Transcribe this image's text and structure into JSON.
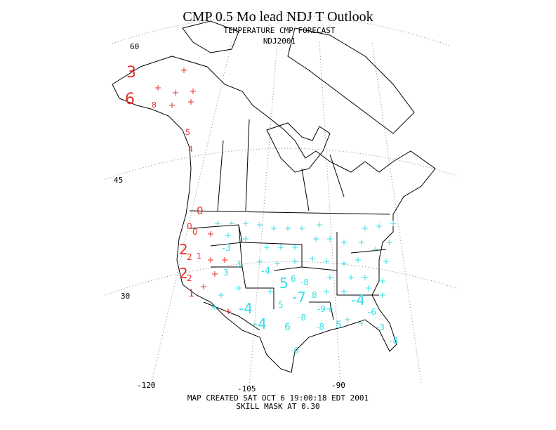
{
  "title": "CMP 0.5 Mo lead NDJ T Outlook",
  "map": {
    "heading": "TEMPERATURE CMP FORECAST",
    "period": "NDJ2001",
    "lat_labels": [
      "60",
      "45",
      "30"
    ],
    "lon_labels": [
      "-120",
      "-105",
      "-90"
    ],
    "footer": [
      "MAP CREATED SAT OCT 6 19:00:18 EDT 2001",
      "SKILL MASK AT 0.30"
    ],
    "warm_color": "#e8302a",
    "cold_color": "#33e0e8",
    "warm_labels": [
      "3",
      "6",
      "8",
      "5",
      "4",
      "0",
      "0",
      "0",
      "2",
      "2",
      "1",
      "2",
      "2",
      "1"
    ],
    "cold_labels": [
      "-3",
      "3",
      "3",
      "-4",
      "5",
      "6",
      "-8",
      "-7",
      "5",
      "8",
      "-4",
      "-8",
      "-9",
      "-4",
      "-6",
      "-4",
      "6",
      "-8",
      "5",
      "-3",
      "-9",
      "-8"
    ]
  }
}
